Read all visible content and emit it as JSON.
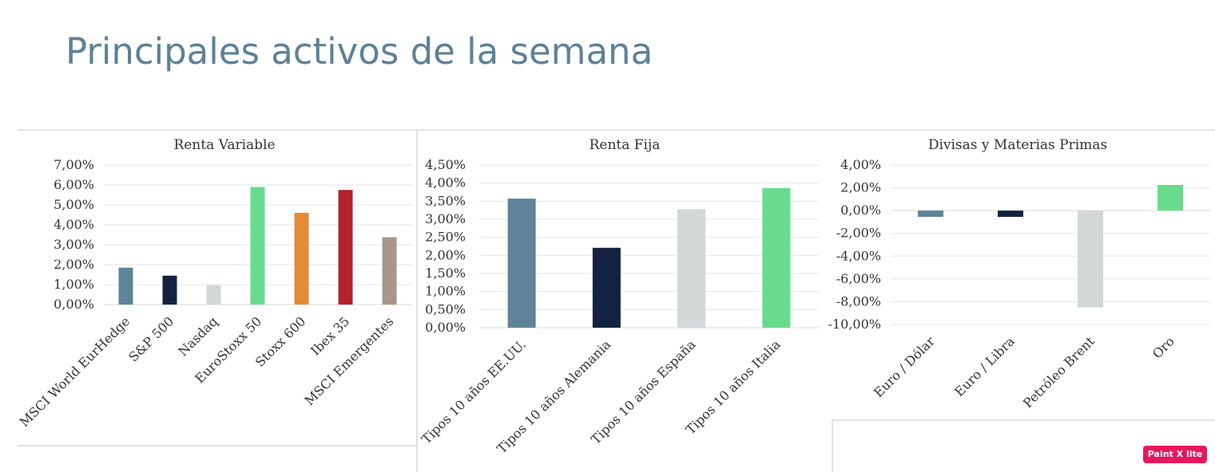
{
  "page": {
    "title": "Principales activos de la semana"
  },
  "watermark": "Paint X lite",
  "chart_data": [
    {
      "type": "bar",
      "title": "Renta Variable",
      "categories": [
        "MSCI World EurHedge",
        "S&P 500",
        "Nasdaq",
        "EuroStoxx 50",
        "Stoxx 600",
        "Ibex 35",
        "MSCI Emergentes"
      ],
      "values": [
        1.85,
        1.45,
        0.97,
        5.9,
        4.6,
        5.75,
        3.38
      ],
      "colors": [
        "#5f8499",
        "#13233f",
        "#d3d7d8",
        "#68db8d",
        "#e38b38",
        "#b1242e",
        "#a79889"
      ],
      "ylim": [
        0,
        7
      ],
      "yticks": [
        "0,00%",
        "1,00%",
        "2,00%",
        "3,00%",
        "4,00%",
        "5,00%",
        "6,00%",
        "7,00%"
      ],
      "grid": true,
      "xlabel": "",
      "ylabel": ""
    },
    {
      "type": "bar",
      "title": "Renta Fija",
      "categories": [
        "Tipos 10 años EE.UU.",
        "Tipos 10 años Alemania",
        "Tipos 10 años España",
        "Tipos 10 años Italia"
      ],
      "values": [
        3.57,
        2.21,
        3.28,
        3.86
      ],
      "colors": [
        "#5f8499",
        "#13233f",
        "#d3d7d8",
        "#68db8d"
      ],
      "ylim": [
        0,
        4.5
      ],
      "yticks": [
        "0,00%",
        "0,50%",
        "1,00%",
        "1,50%",
        "2,00%",
        "2,50%",
        "3,00%",
        "3,50%",
        "4,00%",
        "4,50%"
      ],
      "grid": true,
      "xlabel": "",
      "ylabel": ""
    },
    {
      "type": "bar",
      "title": "Divisas y Materias Primas",
      "categories": [
        "Euro / Dólar",
        "Euro / Libra",
        "Petróleo Brent",
        "Oro"
      ],
      "values": [
        -0.55,
        -0.55,
        -8.5,
        2.25
      ],
      "colors": [
        "#5f8499",
        "#13233f",
        "#d3d7d8",
        "#68db8d"
      ],
      "ylim": [
        -10,
        4
      ],
      "yticks": [
        "-10,00%",
        "-8,00%",
        "-6,00%",
        "-4,00%",
        "-2,00%",
        "0,00%",
        "2,00%",
        "4,00%"
      ],
      "grid": true,
      "xlabel": "",
      "ylabel": ""
    }
  ]
}
